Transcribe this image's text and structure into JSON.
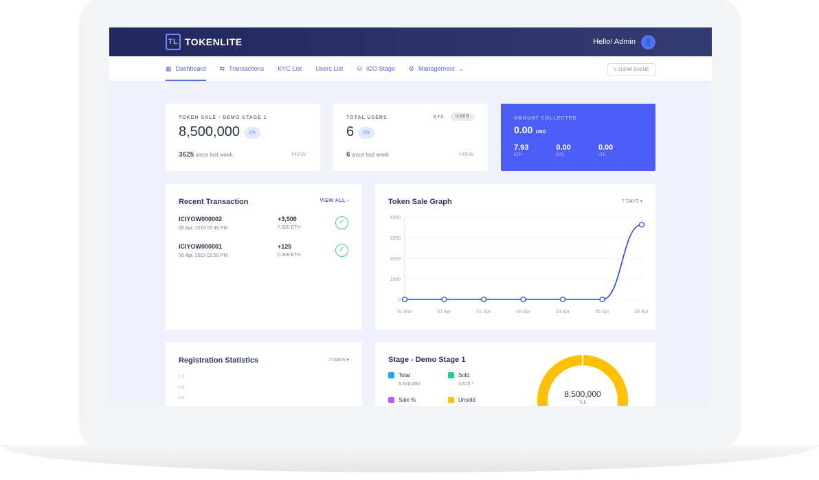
{
  "header": {
    "brand": "TOKENLITE",
    "greeting": "Hello! Admin"
  },
  "nav": {
    "items": [
      {
        "label": "Dashboard",
        "icon": "grid-icon"
      },
      {
        "label": "Transactions",
        "icon": "arrows-icon"
      },
      {
        "label": "KYC List"
      },
      {
        "label": "Users List"
      },
      {
        "label": "ICO Stage",
        "icon": "coins-icon"
      },
      {
        "label": "Management",
        "icon": "gear-icon"
      }
    ],
    "clear_cache": "CLEAR CACHE"
  },
  "token_sale": {
    "label": "TOKEN SALE - DEMO STAGE 1",
    "value": "8,500,000",
    "pct": "1%",
    "since_value": "3625",
    "since": "since last week",
    "view": "VIEW"
  },
  "users": {
    "label": "TOTAL USERS",
    "value": "6",
    "pct": "0%",
    "kyc": "KYC",
    "user": "USER",
    "since_value": "6",
    "since": "since last week",
    "view": "VIEW"
  },
  "amount": {
    "label": "AMOUNT COLLECTED",
    "value": "0.00",
    "unit": "USD",
    "coins": [
      {
        "v": "7.93",
        "c": "ETH"
      },
      {
        "v": "0.00",
        "c": "BTC"
      },
      {
        "v": "0.00",
        "c": "LTC"
      }
    ],
    "color": "#4c5cf6"
  },
  "recent": {
    "title": "Recent Transaction",
    "view_all": "VIEW ALL",
    "items": [
      {
        "id": "ICIYOW000002",
        "date": "06 Apr, 2019 05:46 PM",
        "amount": "+3,500",
        "eth": "7.620 ETH"
      },
      {
        "id": "ICIYOW000001",
        "date": "06 Apr, 2019 02:55 PM",
        "amount": "+125",
        "eth": "0.308 ETH"
      }
    ]
  },
  "graph": {
    "title": "Token Sale Graph",
    "range": "7 DAYS"
  },
  "chart_data": {
    "type": "line",
    "categories": [
      "31 Mar",
      "01 Apr",
      "02 Apr",
      "03 Apr",
      "04 Apr",
      "05 Apr",
      "06 Apr"
    ],
    "values": [
      0,
      0,
      0,
      0,
      0,
      0,
      3625
    ],
    "yticks": [
      0,
      1000,
      2000,
      3000,
      4000
    ],
    "ylim": [
      0,
      4000
    ],
    "grid": true,
    "color": "#2c44f0"
  },
  "registration": {
    "title": "Registration Statistics",
    "range": "7 DAYS",
    "yticks": [
      "1.0",
      "0.8",
      "0.6"
    ]
  },
  "stage": {
    "title": "Stage - Demo Stage 1",
    "legend": [
      {
        "label": "Total",
        "value": "8,500,000",
        "color": "#1ea4f5"
      },
      {
        "label": "Sold",
        "value": "3,625 *",
        "color": "#19cf86"
      },
      {
        "label": "Sale %",
        "value": "",
        "color": "#b45cf5"
      },
      {
        "label": "Unsold",
        "value": "",
        "color": "#ffc001"
      }
    ],
    "donut_value": "8,500,000",
    "donut_unit": "TLE"
  }
}
